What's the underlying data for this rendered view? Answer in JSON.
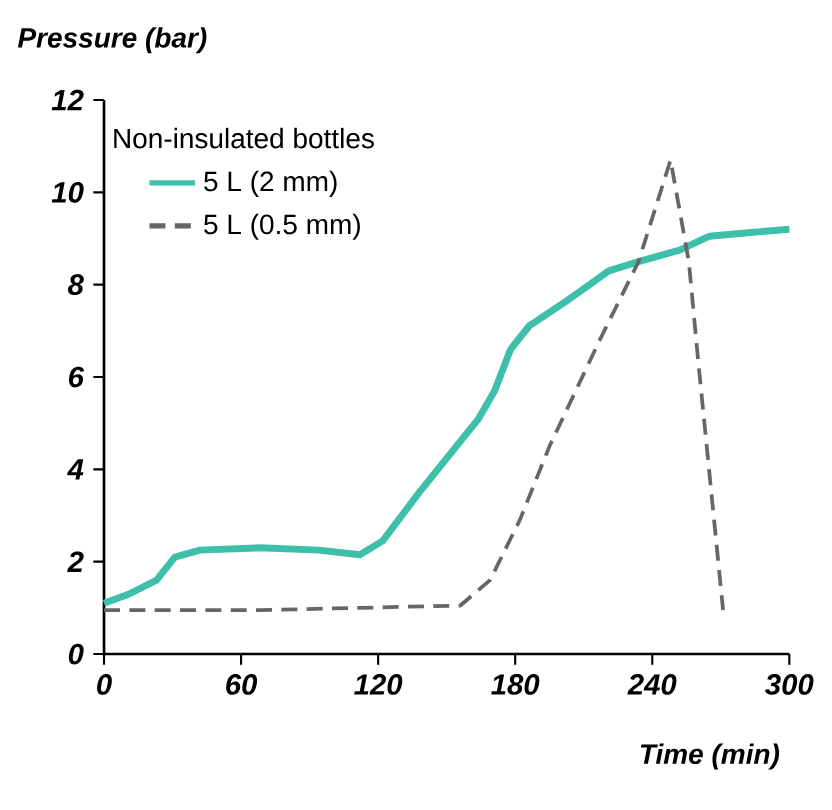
{
  "chart_data": {
    "type": "line",
    "xlabel": "Time (min)",
    "ylabel": "Pressure (bar)",
    "legend_title": "Non-insulated bottles",
    "legend": "top left",
    "xlim": [
      0,
      300
    ],
    "ylim": [
      0,
      12
    ],
    "xticks": [
      0,
      60,
      120,
      180,
      240,
      300
    ],
    "yticks": [
      0,
      2,
      4,
      6,
      8,
      10,
      12
    ],
    "grid": false,
    "series": [
      {
        "name": "5 L (2 mm)",
        "color": "#3dbfaa",
        "line_style": "solid",
        "x": [
          0,
          11,
          23,
          31,
          42,
          68,
          94,
          112,
          122,
          138,
          164,
          171,
          178,
          186,
          204,
          221,
          234,
          252,
          265,
          283,
          300
        ],
        "values": [
          1.1,
          1.3,
          1.6,
          2.1,
          2.25,
          2.3,
          2.25,
          2.15,
          2.45,
          3.5,
          5.1,
          5.7,
          6.6,
          7.1,
          7.7,
          8.3,
          8.5,
          8.75,
          9.05,
          9.13,
          9.2
        ]
      },
      {
        "name": "5 L (0.5 mm)",
        "color": "#666666",
        "line_style": "dashed",
        "x": [
          0,
          68,
          156,
          169,
          182,
          195,
          217,
          234,
          248,
          256,
          260,
          271
        ],
        "values": [
          0.95,
          0.95,
          1.05,
          1.6,
          2.9,
          4.5,
          6.8,
          8.5,
          10.7,
          8.5,
          6.4,
          0.95
        ]
      }
    ]
  }
}
